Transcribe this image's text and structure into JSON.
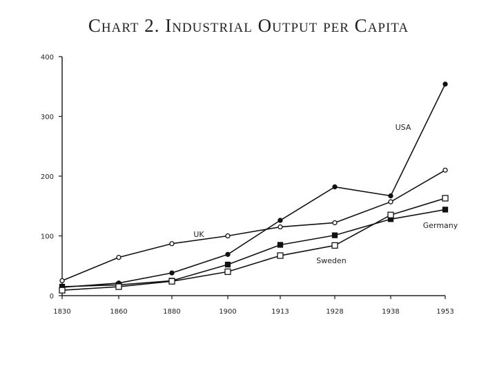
{
  "chart_data": {
    "type": "line",
    "title": "Chart 2. Industrial Output per Capita",
    "xlabel": "",
    "ylabel": "",
    "categories": [
      "1830",
      "1860",
      "1880",
      "1900",
      "1913",
      "1928",
      "1938",
      "1953"
    ],
    "ylim": [
      0,
      400
    ],
    "yticks": [
      "0",
      "100",
      "200",
      "300",
      "400"
    ],
    "grid": false,
    "legend": "none",
    "series": [
      {
        "name": "USA",
        "marker": "filled-circle",
        "values": [
          14,
          21,
          38,
          69,
          126,
          182,
          167,
          354
        ]
      },
      {
        "name": "UK",
        "marker": "open-circle",
        "values": [
          25,
          64,
          87,
          100,
          115,
          122,
          157,
          210
        ]
      },
      {
        "name": "Germany",
        "marker": "filled-square",
        "values": [
          15,
          18,
          25,
          52,
          85,
          101,
          128,
          144
        ]
      },
      {
        "name": "Sweden",
        "marker": "open-square",
        "values": [
          9,
          15,
          24,
          40,
          67,
          84,
          135,
          163
        ]
      }
    ],
    "annotations": [
      {
        "text": "USA",
        "series": "USA"
      },
      {
        "text": "UK",
        "series": "UK"
      },
      {
        "text": "Germany",
        "series": "Germany"
      },
      {
        "text": "Sweden",
        "series": "Sweden"
      }
    ]
  }
}
